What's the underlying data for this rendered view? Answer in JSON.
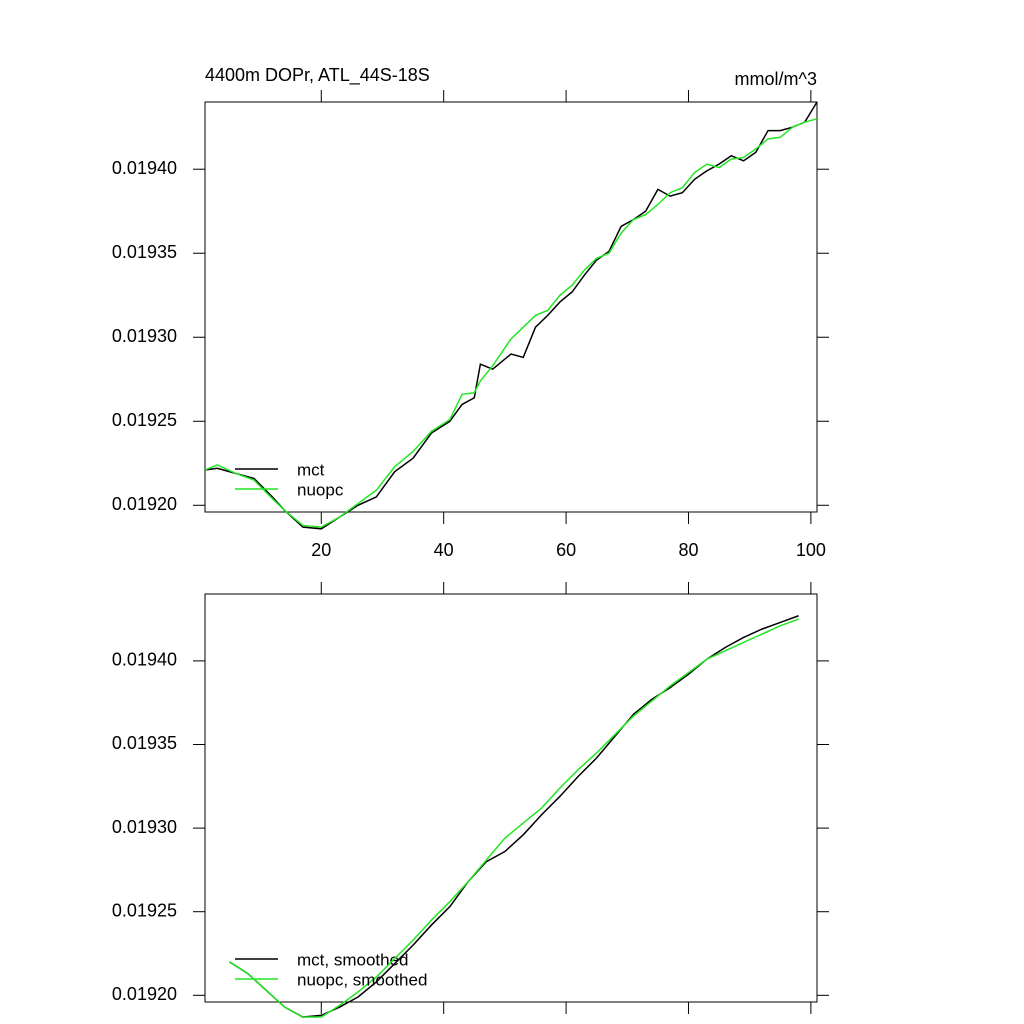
{
  "chart_data": [
    {
      "type": "line",
      "title": "4400m DOPr, ATL_44S-18S",
      "subtitle": "mmol/m^3",
      "x": [
        1,
        3,
        6,
        9,
        12,
        14,
        17,
        20,
        23,
        26,
        29,
        32,
        35,
        38,
        41,
        43,
        45,
        46,
        48,
        51,
        53,
        55,
        57,
        59,
        61,
        63,
        65,
        67,
        69,
        71,
        73,
        75,
        77,
        79,
        81,
        83,
        85,
        87,
        89,
        91,
        93,
        95,
        97,
        99,
        101
      ],
      "series": [
        {
          "name": "mct",
          "color": "#000000",
          "values": [
            0.019221,
            0.019222,
            0.019219,
            0.019216,
            0.019205,
            0.019197,
            0.019187,
            0.019186,
            0.019193,
            0.0192,
            0.019205,
            0.01922,
            0.019228,
            0.019243,
            0.01925,
            0.01926,
            0.019264,
            0.019284,
            0.019281,
            0.01929,
            0.019288,
            0.019306,
            0.019313,
            0.019321,
            0.019327,
            0.019337,
            0.019346,
            0.019351,
            0.019366,
            0.01937,
            0.019375,
            0.019388,
            0.019384,
            0.019386,
            0.019394,
            0.019399,
            0.019403,
            0.019408,
            0.019405,
            0.01941,
            0.019423,
            0.019423,
            0.019425,
            0.019428,
            0.01944
          ]
        },
        {
          "name": "nuopc",
          "color": "#22e622",
          "values": [
            0.019221,
            0.019224,
            0.019219,
            0.019215,
            0.019204,
            0.019197,
            0.019188,
            0.019187,
            0.019193,
            0.019201,
            0.019209,
            0.019223,
            0.019232,
            0.019244,
            0.019251,
            0.019266,
            0.019267,
            0.019274,
            0.019283,
            0.019299,
            0.019306,
            0.019313,
            0.019316,
            0.019325,
            0.019331,
            0.01934,
            0.019347,
            0.01935,
            0.019362,
            0.01937,
            0.019373,
            0.019379,
            0.019386,
            0.019389,
            0.019398,
            0.019403,
            0.019401,
            0.019406,
            0.019407,
            0.019412,
            0.019418,
            0.019419,
            0.019425,
            0.019428,
            0.01943
          ]
        }
      ],
      "xlim": [
        1,
        101
      ],
      "xticks": [
        20,
        40,
        60,
        80,
        100
      ],
      "xtick_labels": true,
      "ylim": [
        0.019196,
        0.01944
      ],
      "yticks": [
        {
          "value": 0.0192,
          "label": "0.01920"
        },
        {
          "value": 0.01925,
          "label": "0.01925"
        },
        {
          "value": 0.0193,
          "label": "0.01930"
        },
        {
          "value": 0.01935,
          "label": "0.01935"
        },
        {
          "value": 0.0194,
          "label": "0.01940"
        }
      ],
      "legend": "lower left"
    },
    {
      "type": "line",
      "x": [
        5,
        8,
        11,
        14,
        17,
        20,
        23,
        26,
        29,
        32,
        35,
        38,
        41,
        44,
        47,
        50,
        53,
        56,
        59,
        62,
        65,
        68,
        71,
        74,
        77,
        80,
        83,
        86,
        89,
        92,
        95,
        98
      ],
      "series": [
        {
          "name": "mct, smoothed",
          "color": "#000000",
          "values": [
            0.01922,
            0.019213,
            0.019203,
            0.019193,
            0.019187,
            0.019188,
            0.019193,
            0.019199,
            0.019208,
            0.019219,
            0.01923,
            0.019242,
            0.019253,
            0.019268,
            0.01928,
            0.019286,
            0.019296,
            0.019308,
            0.019319,
            0.019331,
            0.019342,
            0.019355,
            0.019368,
            0.019377,
            0.019384,
            0.019392,
            0.019401,
            0.019408,
            0.019414,
            0.019419,
            0.019423,
            0.019427
          ]
        },
        {
          "name": "nuopc, smoothed",
          "color": "#22e622",
          "values": [
            0.01922,
            0.019213,
            0.019203,
            0.019193,
            0.019187,
            0.019187,
            0.019194,
            0.019202,
            0.019211,
            0.019222,
            0.019233,
            0.019245,
            0.019256,
            0.019268,
            0.019281,
            0.019294,
            0.019303,
            0.019312,
            0.019324,
            0.019335,
            0.019345,
            0.019356,
            0.019367,
            0.019376,
            0.019385,
            0.019393,
            0.019401,
            0.019406,
            0.019411,
            0.019416,
            0.019421,
            0.019425
          ]
        }
      ],
      "xlim": [
        1,
        101
      ],
      "xticks": [
        20,
        40,
        60,
        80,
        100
      ],
      "xtick_labels": false,
      "ylim": [
        0.019196,
        0.01944
      ],
      "yticks": [
        {
          "value": 0.0192,
          "label": "0.01920"
        },
        {
          "value": 0.01925,
          "label": "0.01925"
        },
        {
          "value": 0.0193,
          "label": "0.01930"
        },
        {
          "value": 0.01935,
          "label": "0.01935"
        },
        {
          "value": 0.0194,
          "label": "0.01940"
        }
      ],
      "legend": "lower left"
    }
  ]
}
